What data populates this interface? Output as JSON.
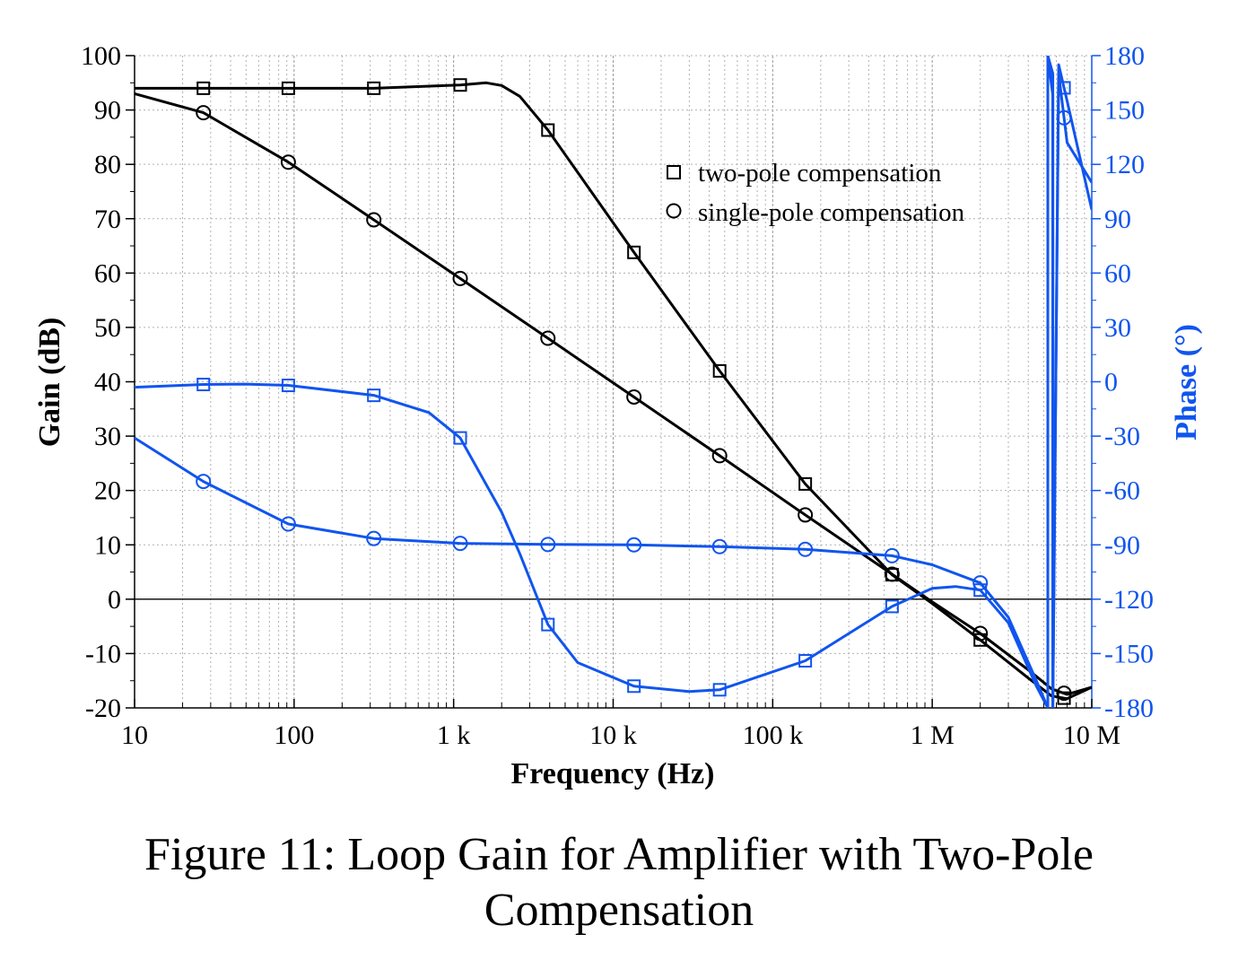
{
  "chart_data": {
    "type": "line",
    "xlabel": "Frequency (Hz)",
    "ylabel": "Gain (dB)",
    "y2label": "Phase (°)",
    "xscale": "log",
    "xlim": [
      10,
      10000000
    ],
    "ylim": [
      -20,
      100
    ],
    "y2lim": [
      -180,
      180
    ],
    "grid": true,
    "legend_position": "top-right",
    "x_ticks": [
      {
        "value": 10,
        "label": "10"
      },
      {
        "value": 100,
        "label": "100"
      },
      {
        "value": 1000,
        "label": "1 k"
      },
      {
        "value": 10000,
        "label": "10 k"
      },
      {
        "value": 100000,
        "label": "100 k"
      },
      {
        "value": 1000000,
        "label": "1 M"
      },
      {
        "value": 10000000,
        "label": "10 M"
      }
    ],
    "y_ticks": [
      {
        "value": 100,
        "label": "100"
      },
      {
        "value": 90,
        "label": "90"
      },
      {
        "value": 80,
        "label": "80"
      },
      {
        "value": 70,
        "label": "70"
      },
      {
        "value": 60,
        "label": "60"
      },
      {
        "value": 50,
        "label": "50"
      },
      {
        "value": 40,
        "label": "40"
      },
      {
        "value": 30,
        "label": "30"
      },
      {
        "value": 20,
        "label": "20"
      },
      {
        "value": 10,
        "label": "10"
      },
      {
        "value": 0,
        "label": "0"
      },
      {
        "value": -10,
        "label": "-10"
      },
      {
        "value": -20,
        "label": "-20"
      }
    ],
    "y2_ticks": [
      {
        "value": 180,
        "label": "180"
      },
      {
        "value": 150,
        "label": "150"
      },
      {
        "value": 120,
        "label": "120"
      },
      {
        "value": 90,
        "label": "90"
      },
      {
        "value": 60,
        "label": "60"
      },
      {
        "value": 30,
        "label": "30"
      },
      {
        "value": 0,
        "label": "0"
      },
      {
        "value": -30,
        "label": "-30"
      },
      {
        "value": -60,
        "label": "-60"
      },
      {
        "value": -90,
        "label": "-90"
      },
      {
        "value": -120,
        "label": "-120"
      },
      {
        "value": -150,
        "label": "-150"
      },
      {
        "value": -180,
        "label": "-180"
      }
    ],
    "legend": [
      {
        "label": "two-pole compensation",
        "marker": "square"
      },
      {
        "label": "single-pole compensation",
        "marker": "circle"
      }
    ],
    "colors": {
      "gain": "#000000",
      "phase": "#1155ee"
    },
    "series": [
      {
        "quantity": "gain",
        "axis": "left",
        "marker": "square",
        "color": "#000000",
        "x": [
          10,
          27,
          92,
          316,
          1100,
          1600,
          2000,
          2600,
          3900,
          13500,
          46500,
          160000,
          560000,
          1000000,
          2000000,
          4000000,
          5600000,
          7000000,
          10000000
        ],
        "y": [
          94,
          94,
          94,
          94,
          94.6,
          95,
          94.5,
          92.5,
          86.3,
          63.8,
          42,
          21.2,
          4.5,
          -0.8,
          -7.5,
          -14.5,
          -17.8,
          -18.3,
          -16.2
        ]
      },
      {
        "quantity": "gain",
        "axis": "left",
        "marker": "circle",
        "color": "#000000",
        "x": [
          10,
          27,
          92,
          316,
          1100,
          3900,
          13500,
          46500,
          160000,
          560000,
          1000000,
          2000000,
          4000000,
          5600000,
          7000000,
          10000000
        ],
        "y": [
          93,
          89.5,
          80.4,
          69.8,
          59,
          48,
          37.2,
          26.4,
          15.5,
          4.6,
          -0.5,
          -6.3,
          -13,
          -16.5,
          -17.5,
          -16.2
        ]
      },
      {
        "quantity": "phase",
        "axis": "right",
        "marker": "square",
        "color": "#1155ee",
        "x": [
          10,
          27,
          50,
          92,
          316,
          700,
          1100,
          2000,
          2600,
          3900,
          6000,
          13500,
          30000,
          46500,
          160000,
          560000,
          1000000,
          1400000,
          2000000,
          3000000,
          4500000,
          5300000,
          5300000,
          5700000,
          5700000,
          6200000,
          7000000,
          10000000
        ],
        "y": [
          -3,
          -1.5,
          -1.3,
          -2,
          -7.5,
          -17,
          -31,
          -72,
          -95,
          -134,
          -155,
          -168,
          -171,
          -170,
          -154,
          -124,
          -114,
          -113,
          -115,
          -133,
          -168,
          -180,
          180,
          158,
          -180,
          175,
          155,
          95
        ]
      },
      {
        "quantity": "phase",
        "axis": "right",
        "marker": "circle",
        "color": "#1155ee",
        "x": [
          10,
          27,
          92,
          316,
          1100,
          3900,
          13500,
          46500,
          160000,
          560000,
          1000000,
          2000000,
          3000000,
          4500000,
          5300000,
          5300000,
          5700000,
          5700000,
          6200000,
          7000000,
          10000000
        ],
        "y": [
          -31,
          -55,
          -78.5,
          -86.5,
          -89.2,
          -89.8,
          -90,
          -91,
          -92.5,
          -96,
          -101,
          -111,
          -130,
          -165,
          -180,
          180,
          170,
          -180,
          170,
          132,
          110
        ]
      }
    ]
  },
  "caption": {
    "line1": "Figure 11: Loop Gain for Amplifier with Two-Pole",
    "line2": "Compensation"
  }
}
